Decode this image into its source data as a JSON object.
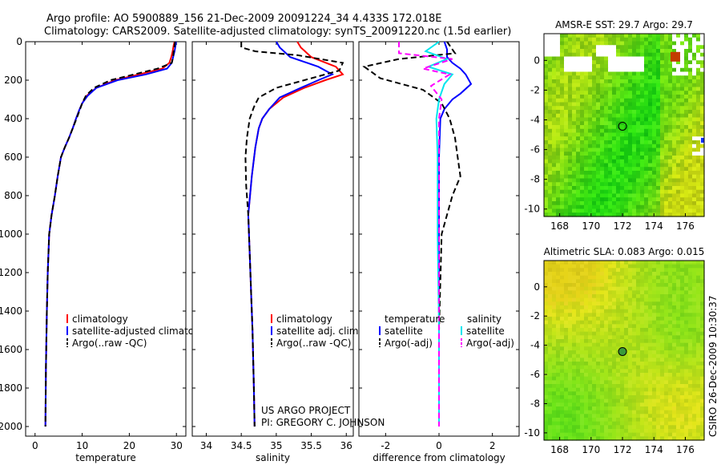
{
  "header": {
    "line1": "Argo profile: AO 5900889_156 21-Dec-2009 20091224_34 4.433S 172.018E",
    "line2": "Climatology: CARS2009. Satellite-adjusted climatology: synTS_20091220.nc (1.5d earlier)"
  },
  "colors": {
    "clim": "#ff0000",
    "sat": "#0000ff",
    "argo": "#000000",
    "salsat": "#00e5ee",
    "salargo": "#ff00ff",
    "marker": "#c33c00"
  },
  "chart_data": [
    {
      "type": "line",
      "id": "temperature",
      "xlabel": "temperature",
      "xlim": [
        -2,
        32
      ],
      "ylim": [
        0,
        2050
      ],
      "xticks": [
        0,
        10,
        20,
        30
      ],
      "yticks": [
        0,
        200,
        400,
        600,
        800,
        1000,
        1200,
        1400,
        1600,
        1800,
        2000
      ],
      "legend": [
        "climatology",
        "satellite-adjusted climatology",
        "Argo(..raw -QC)"
      ],
      "series": [
        {
          "name": "climatology",
          "color": "#ff0000",
          "dash": "",
          "x": [
            29.6,
            29.4,
            29.2,
            28.9,
            28.5,
            27,
            22,
            17,
            13,
            11,
            10,
            9.3,
            8.7,
            8,
            7.2,
            6.3,
            5.5,
            4.8,
            4.2,
            3.5,
            3,
            2.7,
            2.5,
            2.3,
            2.2
          ],
          "y": [
            0,
            20,
            50,
            80,
            110,
            140,
            170,
            200,
            240,
            280,
            320,
            360,
            400,
            450,
            500,
            550,
            600,
            700,
            800,
            900,
            1000,
            1200,
            1400,
            1700,
            2000
          ]
        },
        {
          "name": "satellite-adjusted climatology",
          "color": "#0000ff",
          "dash": "",
          "x": [
            29.9,
            29.8,
            29.6,
            29.3,
            29,
            28,
            23.5,
            17.5,
            13,
            11.2,
            10,
            9.3,
            8.7,
            8,
            7.2,
            6.3,
            5.5,
            4.8,
            4.2,
            3.5,
            3,
            2.7,
            2.5,
            2.3,
            2.2
          ],
          "y": [
            0,
            20,
            50,
            80,
            110,
            140,
            170,
            200,
            240,
            280,
            320,
            360,
            400,
            450,
            500,
            550,
            600,
            700,
            800,
            900,
            1000,
            1200,
            1400,
            1700,
            2000
          ]
        },
        {
          "name": "Argo(..raw -QC)",
          "color": "#000000",
          "dash": "7,4",
          "x": [
            29.7,
            29.6,
            29.4,
            29.3,
            29,
            26,
            21,
            16,
            12.5,
            10.8,
            10,
            9.4,
            8.8,
            8,
            7.2,
            6.3,
            5.5,
            4.8,
            4.2,
            3.5,
            3,
            2.7,
            2.5,
            2.3,
            2.2
          ],
          "y": [
            0,
            20,
            50,
            80,
            110,
            140,
            170,
            200,
            240,
            280,
            320,
            360,
            400,
            450,
            500,
            550,
            600,
            700,
            800,
            900,
            1000,
            1200,
            1400,
            1700,
            2000
          ]
        }
      ]
    },
    {
      "type": "line",
      "id": "salinity",
      "xlabel": "salinity",
      "xlim": [
        33.8,
        36.1
      ],
      "ylim": [
        0,
        2050
      ],
      "xticks": [
        34,
        34.5,
        35,
        35.5,
        36
      ],
      "legend": [
        "climatology",
        "satellite adj. clim.",
        "Argo(..raw -QC)"
      ],
      "series": [
        {
          "name": "climatology",
          "color": "#ff0000",
          "dash": "",
          "x": [
            35.3,
            35.35,
            35.5,
            35.85,
            35.95,
            35.7,
            35.4,
            35.1,
            34.9,
            34.8,
            34.75,
            34.7,
            34.65,
            34.6,
            34.62,
            34.64,
            34.66,
            34.68,
            34.69
          ],
          "y": [
            0,
            30,
            80,
            130,
            170,
            200,
            240,
            290,
            350,
            400,
            450,
            550,
            700,
            900,
            1100,
            1300,
            1500,
            1800,
            2000
          ]
        },
        {
          "name": "satellite adj. clim.",
          "color": "#0000ff",
          "dash": "",
          "x": [
            35.0,
            35.05,
            35.2,
            35.6,
            35.8,
            35.6,
            35.35,
            35.05,
            34.9,
            34.8,
            34.75,
            34.7,
            34.65,
            34.6,
            34.62,
            34.64,
            34.66,
            34.68,
            34.69
          ],
          "y": [
            0,
            30,
            80,
            130,
            170,
            200,
            240,
            290,
            350,
            400,
            450,
            550,
            700,
            900,
            1100,
            1300,
            1500,
            1800,
            2000
          ]
        },
        {
          "name": "Argo(..raw -QC)",
          "color": "#000000",
          "dash": "7,4",
          "x": [
            34.5,
            34.5,
            34.7,
            35.3,
            35.95,
            35.9,
            35.5,
            35.0,
            34.75,
            34.68,
            34.62,
            34.58,
            34.56,
            34.57,
            34.6,
            34.62,
            34.64,
            34.66,
            34.68,
            34.69
          ],
          "y": [
            0,
            30,
            50,
            70,
            110,
            150,
            190,
            240,
            290,
            340,
            400,
            500,
            600,
            750,
            900,
            1100,
            1300,
            1500,
            1800,
            2000
          ]
        }
      ]
    },
    {
      "type": "line",
      "id": "difference",
      "xlabel": "difference from climatology",
      "xlim": [
        -3,
        3
      ],
      "ylim": [
        0,
        2050
      ],
      "xticks": [
        -2,
        0,
        2
      ],
      "legend_titles": [
        "temperature",
        "salinity"
      ],
      "legend": [
        "satellite",
        "Argo(-adj)",
        "satellite",
        "Argo(-adj)"
      ],
      "series": [
        {
          "name": "temperature satellite",
          "color": "#0000ff",
          "dash": "",
          "x": [
            0.2,
            0.3,
            0.3,
            0.5,
            0.8,
            1.0,
            1.2,
            0.8,
            0.5,
            0.2,
            0.05,
            0,
            0,
            0,
            0,
            0
          ],
          "y": [
            0,
            40,
            80,
            110,
            140,
            170,
            220,
            270,
            300,
            350,
            400,
            600,
            1000,
            1400,
            1800,
            2000
          ]
        },
        {
          "name": "temperature Argo(-adj)",
          "color": "#000000",
          "dash": "7,4",
          "x": [
            0.3,
            0.6,
            -1.5,
            -2.8,
            -2.2,
            -0.6,
            0.1,
            0.4,
            0.6,
            0.7,
            0.8,
            0.5,
            0.1,
            0,
            0
          ],
          "y": [
            0,
            60,
            90,
            130,
            190,
            250,
            320,
            400,
            500,
            600,
            700,
            800,
            1000,
            1500,
            2000
          ]
        },
        {
          "name": "salinity satellite",
          "color": "#00e5ee",
          "dash": "",
          "x": [
            0,
            -0.5,
            0.3,
            -0.4,
            0.5,
            0.2,
            0,
            -0.1,
            -0.05,
            -0.05,
            0,
            0
          ],
          "y": [
            0,
            50,
            90,
            130,
            170,
            220,
            300,
            400,
            600,
            1000,
            1500,
            2000
          ]
        },
        {
          "name": "salinity Argo(-adj)",
          "color": "#ff00ff",
          "dash": "7,4",
          "x": [
            -1.5,
            -1.5,
            0.5,
            -0.6,
            0.4,
            -0.3,
            0.1,
            0,
            0,
            0
          ],
          "y": [
            0,
            60,
            90,
            140,
            170,
            230,
            300,
            400,
            1000,
            2000
          ]
        }
      ]
    },
    {
      "type": "heatmap",
      "id": "sst-map",
      "title": "AMSR-E SST: 29.7  Argo: 29.7",
      "xlim": [
        167,
        177.2
      ],
      "ylim": [
        -10.5,
        1.8
      ],
      "xticks": [
        168,
        170,
        172,
        174,
        176
      ],
      "yticks": [
        0,
        -2,
        -4,
        -6,
        -8,
        -10
      ],
      "argo_position": [
        172.0,
        -4.43
      ]
    },
    {
      "type": "heatmap",
      "id": "sla-map",
      "title": "Altimetric SLA: 0.083  Argo: 0.015",
      "xlim": [
        167,
        177.2
      ],
      "ylim": [
        -10.5,
        1.8
      ],
      "xticks": [
        168,
        170,
        172,
        174,
        176
      ],
      "yticks": [
        0,
        -2,
        -4,
        -6,
        -8,
        -10
      ],
      "argo_position": [
        172.0,
        -4.43
      ]
    }
  ],
  "credits": {
    "line1": "US ARGO PROJECT",
    "line2": "PI: GREGORY C. JOHNSON"
  },
  "stamp": "CSIRO 26-Dec-2009 10:30:37"
}
